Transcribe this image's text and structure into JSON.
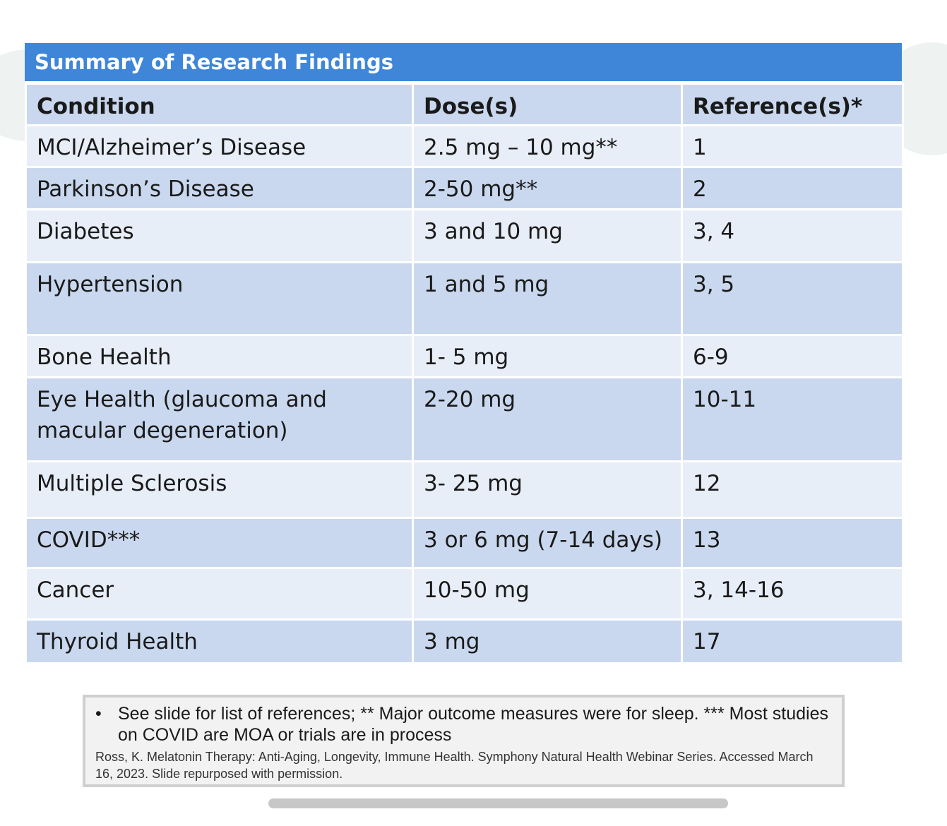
{
  "title": "Summary of Research Findings",
  "table": {
    "headers": [
      "Condition",
      "Dose(s)",
      "Reference(s)*"
    ],
    "rows": [
      [
        "MCI/Alzheimer’s Disease",
        "2.5 mg – 10 mg**",
        "1"
      ],
      [
        "Parkinson’s Disease",
        "2-50 mg**",
        "2"
      ],
      [
        "Diabetes",
        "3 and 10 mg",
        "3, 4"
      ],
      [
        "Hypertension",
        "1 and 5 mg",
        "3, 5"
      ],
      [
        "Bone Health",
        "1- 5 mg",
        "6-9"
      ],
      [
        "Eye Health (glaucoma and macular degeneration)",
        "2-20 mg",
        "10-11"
      ],
      [
        "Multiple Sclerosis",
        "3- 25 mg",
        "12"
      ],
      [
        "COVID***",
        "3 or 6 mg (7-14 days)",
        "13"
      ],
      [
        "Cancer",
        "10-50 mg",
        "3, 14-16"
      ],
      [
        "Thyroid Health",
        "3 mg",
        "17"
      ]
    ]
  },
  "footnote": {
    "bullet": "•",
    "text": "See slide for list of references; ** Major outcome measures were for sleep. *** Most studies on COVID are MOA or trials are in process",
    "citation": "Ross, K. Melatonin Therapy: Anti-Aging, Longevity, Immune Health. Symphony Natural Health Webinar Series. Accessed March 16, 2023.  Slide repurposed with permission."
  },
  "colors": {
    "title_bar": "#3f86d8",
    "row_dark": "#c9d8ee",
    "row_light": "#e8eef8"
  }
}
